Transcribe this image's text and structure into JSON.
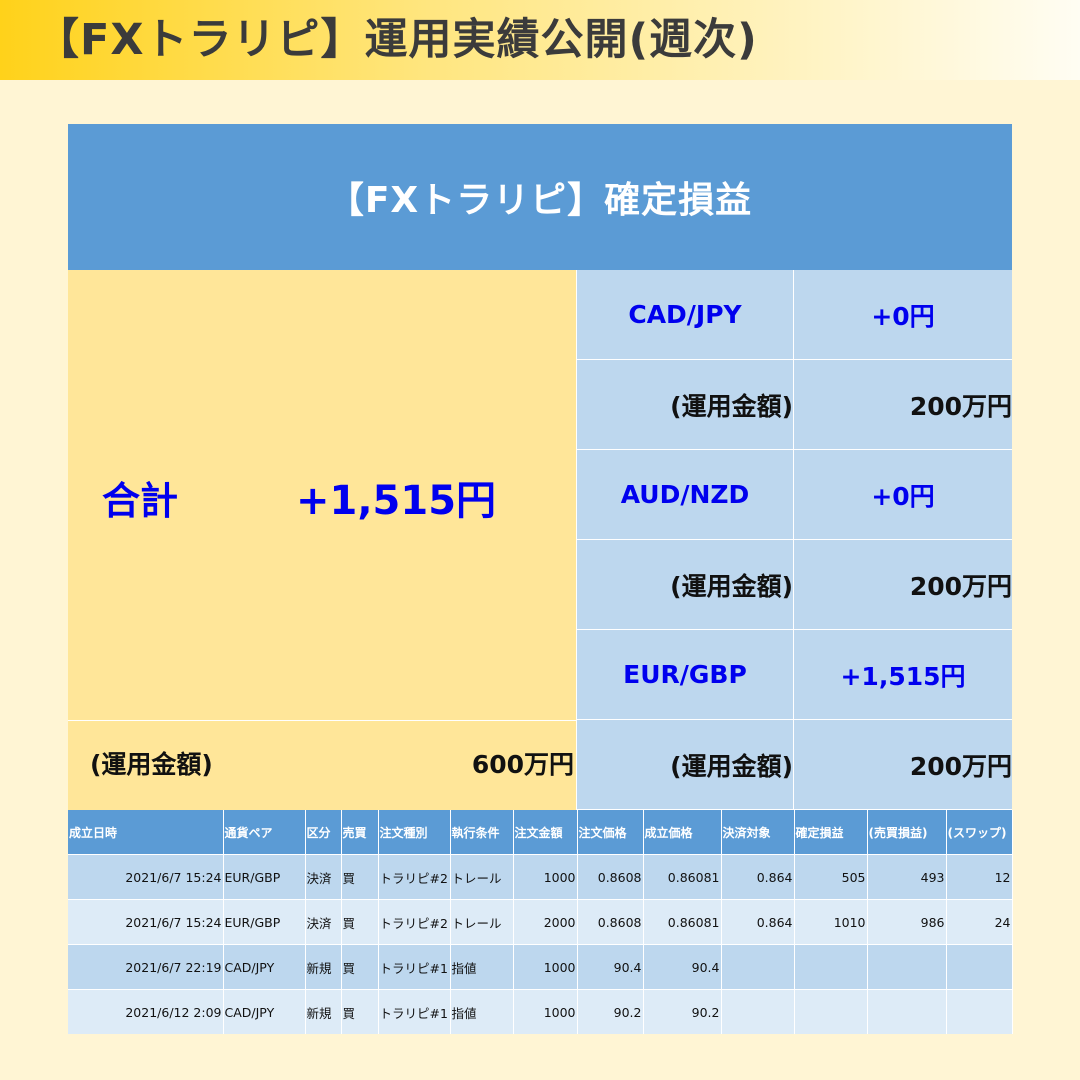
{
  "page_title": "【FXトラリピ】運用実績公開(週次)",
  "panel": {
    "header": "【FXトラリピ】確定損益",
    "total": {
      "label": "合計",
      "value": "+1,515円",
      "capital_label": "(運用金額)",
      "capital_value": "600万円"
    },
    "pairs": [
      {
        "name": "CAD/JPY",
        "pl": "+0円",
        "capital_label": "(運用金額)",
        "capital_value": "200万円"
      },
      {
        "name": "AUD/NZD",
        "pl": "+0円",
        "capital_label": "(運用金額)",
        "capital_value": "200万円"
      },
      {
        "name": "EUR/GBP",
        "pl": "+1,515円",
        "capital_label": "(運用金額)",
        "capital_value": "200万円"
      }
    ]
  },
  "trades": {
    "headers": [
      "成立日時",
      "通貨ペア",
      "区分",
      "売買",
      "注文種別",
      "執行条件",
      "注文金額",
      "注文価格",
      "成立価格",
      "決済対象",
      "確定損益",
      "(売買損益)",
      "(スワップ)"
    ],
    "rows": [
      [
        "2021/6/7 15:24",
        "EUR/GBP",
        "決済",
        "買",
        "トラリピ#2",
        "トレール",
        "1000",
        "0.8608",
        "0.86081",
        "0.864",
        "505",
        "493",
        "12"
      ],
      [
        "2021/6/7 15:24",
        "EUR/GBP",
        "決済",
        "買",
        "トラリピ#2",
        "トレール",
        "2000",
        "0.8608",
        "0.86081",
        "0.864",
        "1010",
        "986",
        "24"
      ],
      [
        "2021/6/7 22:19",
        "CAD/JPY",
        "新規",
        "買",
        "トラリピ#1",
        "指値",
        "1000",
        "90.4",
        "90.4",
        "",
        "",
        "",
        ""
      ],
      [
        "2021/6/12 2:09",
        "CAD/JPY",
        "新規",
        "買",
        "トラリピ#1",
        "指値",
        "1000",
        "90.2",
        "90.2",
        "",
        "",
        "",
        ""
      ]
    ]
  }
}
